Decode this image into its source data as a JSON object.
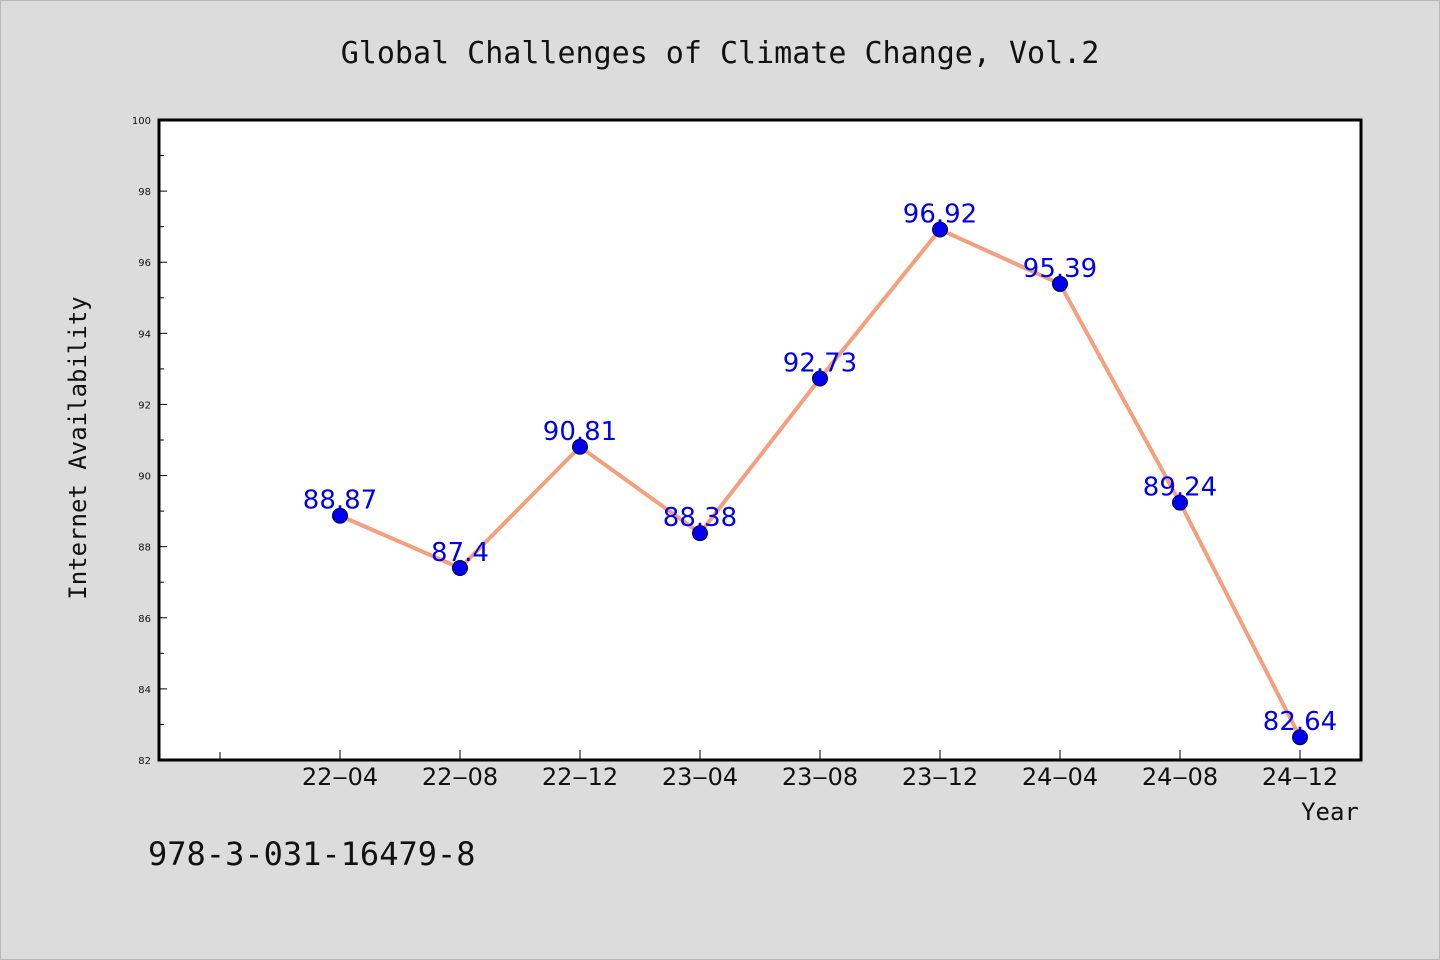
{
  "chart_data": {
    "type": "line",
    "title": "Global Challenges of Climate Change, Vol.2",
    "xlabel": "Year",
    "ylabel": "Internet Availability",
    "categories": [
      "22-04",
      "22-08",
      "22-12",
      "23-04",
      "23-08",
      "23-12",
      "24-04",
      "24-08",
      "24-12"
    ],
    "x_tick_labels": [
      "22‒04",
      "22‒08",
      "22‒12",
      "23‒04",
      "23‒08",
      "23‒12",
      "24‒04",
      "24‒08",
      "24‒12"
    ],
    "series": [
      {
        "values": [
          88.87,
          87.4,
          90.81,
          88.38,
          92.73,
          96.92,
          95.39,
          89.24,
          82.64
        ],
        "labels": [
          "88.87",
          "87.4",
          "90.81",
          "88.38",
          "92.73",
          "96.92",
          "95.39",
          "89.24",
          "82.64"
        ],
        "line_color": "#f4a07e",
        "marker_color": "#0000ee",
        "label_color": "#0000ee"
      }
    ],
    "ylim": [
      82,
      100
    ],
    "yticks": [
      82,
      84,
      86,
      88,
      90,
      92,
      94,
      96,
      98,
      100
    ],
    "grid": false,
    "legend": "none"
  },
  "footer": {
    "isbn": "978-3-031-16479-8"
  },
  "colors": {
    "background": "#dcdcdc",
    "plot_background": "#ffffff",
    "axis": "#000000"
  }
}
